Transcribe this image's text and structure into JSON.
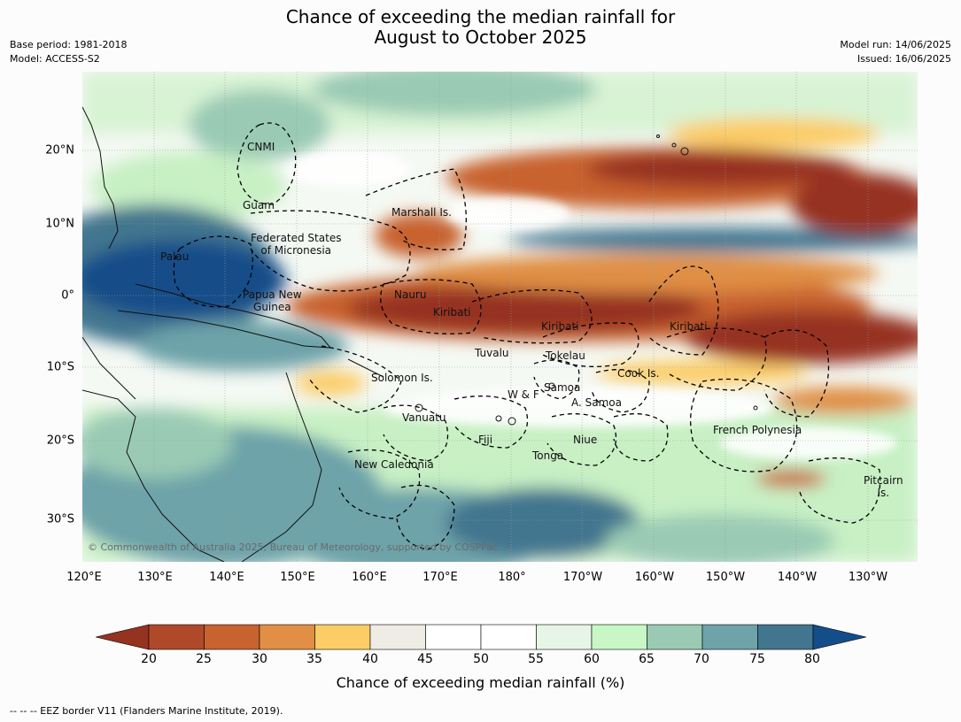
{
  "title_line1": "Chance of exceeding the median rainfall for",
  "title_line2": "August to October 2025",
  "meta_left": [
    "Base period: 1981-2018",
    "Model: ACCESS-S2"
  ],
  "meta_right": [
    "Model run: 14/06/2025",
    "Issued: 16/06/2025"
  ],
  "lon_labels": [
    "120°E",
    "130°E",
    "140°E",
    "150°E",
    "160°E",
    "170°E",
    "180°",
    "170°W",
    "160°W",
    "150°W",
    "140°W",
    "130°W"
  ],
  "lat_labels": [
    "20°N",
    "10°N",
    "0°",
    "10°S",
    "20°S",
    "30°S"
  ],
  "regions": {
    "cnmi": "CNMI",
    "guam": "Guam",
    "marshall": "Marshall Is.",
    "fsm": "Federated States\nof Micronesia",
    "palau": "Palau",
    "png": "Papua New\nGuinea",
    "nauru": "Nauru",
    "kiribati_w": "Kiribati",
    "kiribati_c": "Kiribati",
    "kiribati_e": "Kiribati",
    "tuvalu": "Tuvalu",
    "tokelau": "Tokelau",
    "solomon": "Solomon Is.",
    "samoa": "Samoa",
    "wf": "W & F",
    "asamoa": "A. Samoa",
    "cook": "Cook Is.",
    "vanuatu": "Vanuatu",
    "fiji": "Fiji",
    "niue": "Niue",
    "tonga": "Tonga",
    "newcal": "New Caledonia",
    "frpoly": "French Polynesia",
    "pitcairn": "Pitcairn\nIs."
  },
  "copyright": "© Commonwealth of Australia 2025, Bureau of Meteorology, supported by COSPPac",
  "colorbar": {
    "ticks": [
      "20",
      "25",
      "30",
      "35",
      "40",
      "45",
      "50",
      "55",
      "60",
      "65",
      "70",
      "75",
      "80"
    ],
    "colors": [
      "#b0492a",
      "#c8622f",
      "#e08f45",
      "#fccc66",
      "#efece6",
      "#ffffff",
      "#ffffff",
      "#e7f5e6",
      "#c8f7c5",
      "#9acab4",
      "#6da3a9",
      "#42768f"
    ],
    "low_color": "#963320",
    "high_color": "#134e89",
    "label": "Chance of exceeding median rainfall (%)"
  },
  "footnote": "--  --  -- EEZ border V11 (Flanders Marine Institute, 2019)."
}
